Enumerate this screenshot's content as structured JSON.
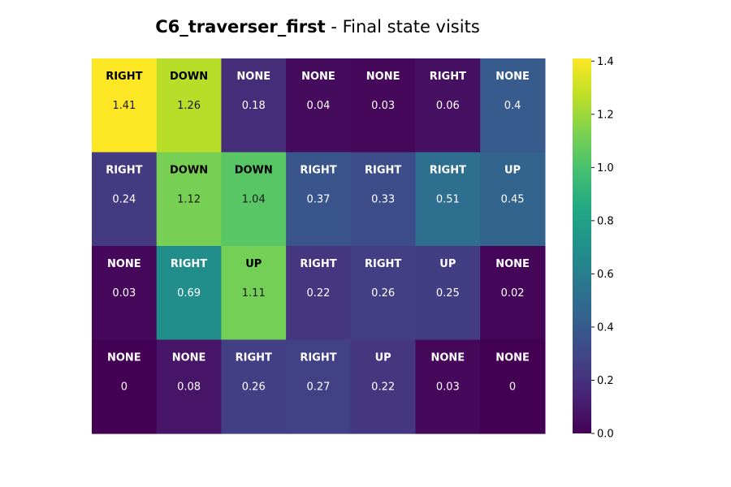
{
  "chart_data": {
    "type": "heatmap",
    "title": {
      "bold": "C6_traverser_first",
      "rest": " - Final state visits"
    },
    "xlabel": "",
    "ylabel": "",
    "rows": 4,
    "cols": 7,
    "values": [
      [
        1.41,
        1.26,
        0.18,
        0.04,
        0.03,
        0.06,
        0.4
      ],
      [
        0.24,
        1.12,
        1.04,
        0.37,
        0.33,
        0.51,
        0.45
      ],
      [
        0.03,
        0.69,
        1.11,
        0.22,
        0.26,
        0.25,
        0.02
      ],
      [
        0,
        0.08,
        0.26,
        0.27,
        0.22,
        0.03,
        0
      ]
    ],
    "actions": [
      [
        "RIGHT",
        "DOWN",
        "NONE",
        "NONE",
        "NONE",
        "RIGHT",
        "NONE"
      ],
      [
        "RIGHT",
        "DOWN",
        "DOWN",
        "RIGHT",
        "RIGHT",
        "RIGHT",
        "UP"
      ],
      [
        "NONE",
        "RIGHT",
        "UP",
        "RIGHT",
        "RIGHT",
        "UP",
        "NONE"
      ],
      [
        "NONE",
        "NONE",
        "RIGHT",
        "RIGHT",
        "UP",
        "NONE",
        "NONE"
      ]
    ],
    "colormap": "viridis",
    "vmin": 0.0,
    "vmax": 1.41,
    "colorbar": {
      "ticks": [
        0.0,
        0.2,
        0.4,
        0.6,
        0.8,
        1.0,
        1.2,
        1.4
      ],
      "tick_labels": [
        "0.0",
        "0.2",
        "0.4",
        "0.6",
        "0.8",
        "1.0",
        "1.2",
        "1.4"
      ]
    },
    "legend": "none",
    "grid": false
  }
}
